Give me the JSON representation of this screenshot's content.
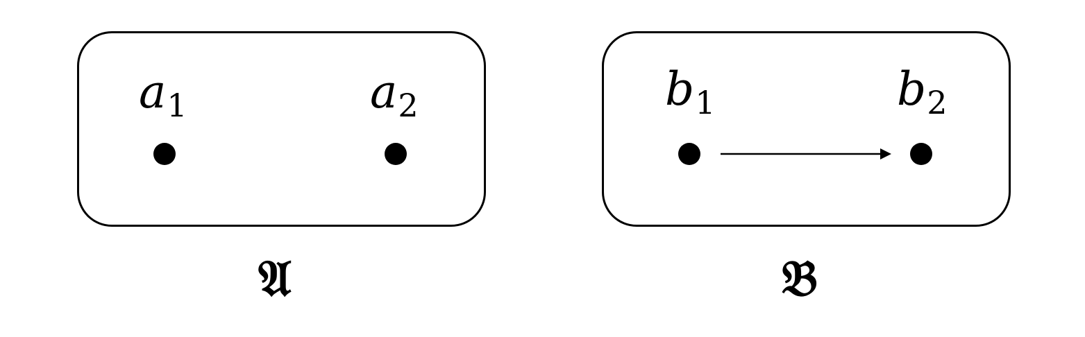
{
  "structures": [
    {
      "name": "𝔄",
      "elements": [
        {
          "letter": "a",
          "index": "1"
        },
        {
          "letter": "a",
          "index": "2"
        }
      ],
      "edges": []
    },
    {
      "name": "𝔅",
      "elements": [
        {
          "letter": "b",
          "index": "1"
        },
        {
          "letter": "b",
          "index": "2"
        }
      ],
      "edges": [
        {
          "from": "b1",
          "to": "b2"
        }
      ]
    }
  ]
}
